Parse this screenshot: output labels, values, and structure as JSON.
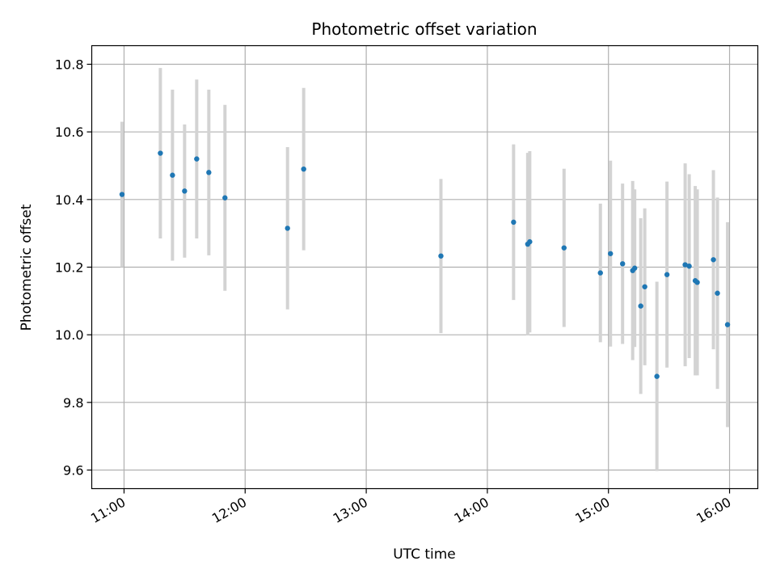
{
  "chart_data": {
    "type": "scatter",
    "title": "Photometric offset variation",
    "xlabel": "UTC time",
    "ylabel": "Photometric offset",
    "xlim": [
      "10:44",
      "16:14"
    ],
    "ylim": [
      9.545,
      10.855
    ],
    "x_ticks": [
      "11:00",
      "12:00",
      "13:00",
      "14:00",
      "15:00",
      "16:00"
    ],
    "y_ticks": [
      "9.6",
      "9.8",
      "10.0",
      "10.2",
      "10.4",
      "10.6",
      "10.8"
    ],
    "grid": true,
    "marker_color": "#1f77b4",
    "errorbar_color": "#d3d3d3",
    "points": [
      {
        "x": "10:59",
        "y": 10.415,
        "err": 0.215
      },
      {
        "x": "11:18",
        "y": 10.537,
        "err": 0.252
      },
      {
        "x": "11:24",
        "y": 10.472,
        "err": 0.253
      },
      {
        "x": "11:30",
        "y": 10.425,
        "err": 0.197
      },
      {
        "x": "11:36",
        "y": 10.52,
        "err": 0.235
      },
      {
        "x": "11:42",
        "y": 10.48,
        "err": 0.245
      },
      {
        "x": "11:50",
        "y": 10.405,
        "err": 0.275
      },
      {
        "x": "12:21",
        "y": 10.315,
        "err": 0.24
      },
      {
        "x": "12:29",
        "y": 10.49,
        "err": 0.24
      },
      {
        "x": "13:37",
        "y": 10.233,
        "err": 0.228
      },
      {
        "x": "14:13",
        "y": 10.333,
        "err": 0.23
      },
      {
        "x": "14:20",
        "y": 10.268,
        "err": 0.27
      },
      {
        "x": "14:21",
        "y": 10.275,
        "err": 0.268
      },
      {
        "x": "14:38",
        "y": 10.257,
        "err": 0.234
      },
      {
        "x": "14:56",
        "y": 10.183,
        "err": 0.205
      },
      {
        "x": "15:01",
        "y": 10.24,
        "err": 0.275
      },
      {
        "x": "15:07",
        "y": 10.21,
        "err": 0.237
      },
      {
        "x": "15:12",
        "y": 10.19,
        "err": 0.265
      },
      {
        "x": "15:13",
        "y": 10.197,
        "err": 0.233
      },
      {
        "x": "15:16",
        "y": 10.085,
        "err": 0.26
      },
      {
        "x": "15:18",
        "y": 10.142,
        "err": 0.232
      },
      {
        "x": "15:24",
        "y": 9.877,
        "err": 0.28
      },
      {
        "x": "15:29",
        "y": 10.178,
        "err": 0.275
      },
      {
        "x": "15:38",
        "y": 10.207,
        "err": 0.3
      },
      {
        "x": "15:40",
        "y": 10.203,
        "err": 0.272
      },
      {
        "x": "15:43",
        "y": 10.16,
        "err": 0.28
      },
      {
        "x": "15:44",
        "y": 10.155,
        "err": 0.275
      },
      {
        "x": "15:52",
        "y": 10.222,
        "err": 0.265
      },
      {
        "x": "15:54",
        "y": 10.123,
        "err": 0.283
      },
      {
        "x": "15:59",
        "y": 10.03,
        "err": 0.303
      }
    ]
  }
}
